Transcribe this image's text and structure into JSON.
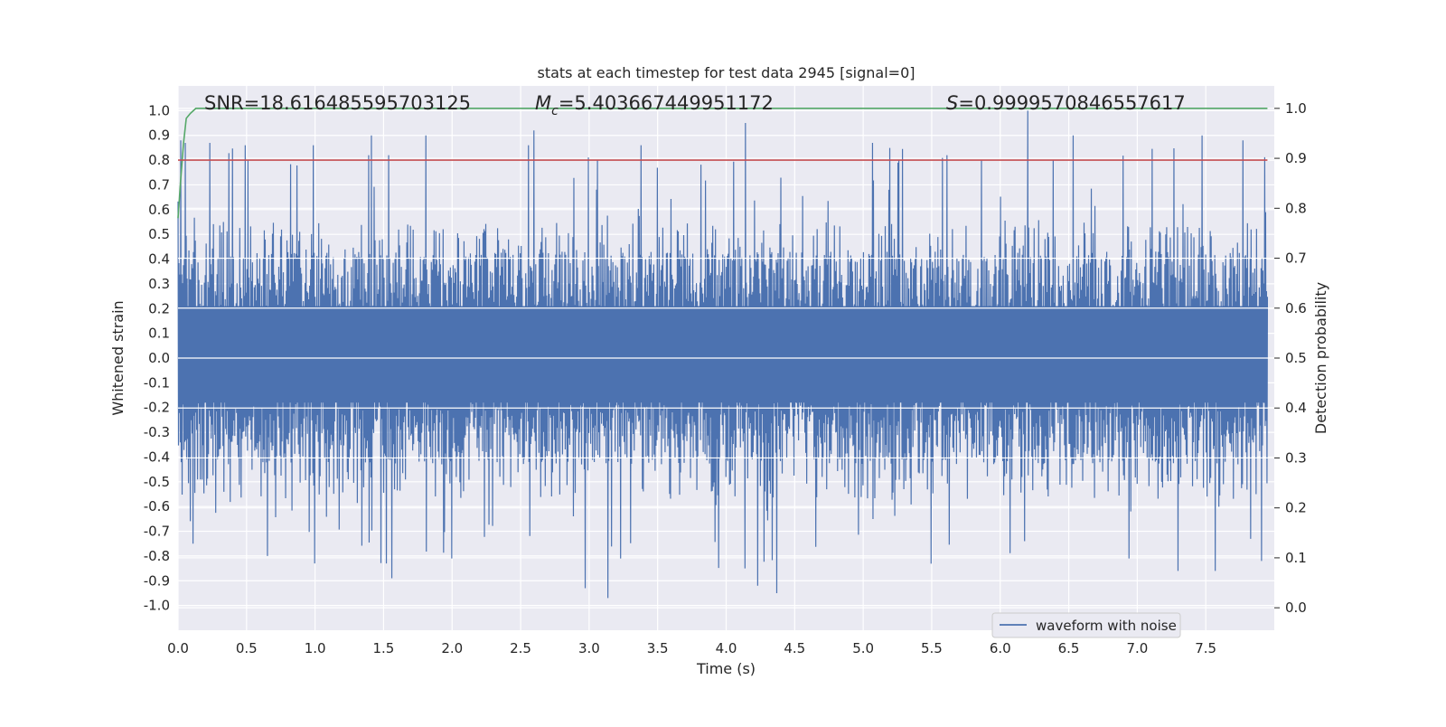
{
  "chart_data": {
    "type": "line",
    "title": "stats at each timestep for test data 2945 [signal=0]",
    "xlabel": "Time (s)",
    "ylabel": "Whitened strain",
    "y2label": "Detection probability",
    "xlim": [
      0.0,
      8.0
    ],
    "ylim": [
      -1.1,
      1.1
    ],
    "y2lim": [
      -0.045,
      1.045
    ],
    "xticks": [
      "0.0",
      "0.5",
      "1.0",
      "1.5",
      "2.0",
      "2.5",
      "3.0",
      "3.5",
      "4.0",
      "4.5",
      "5.0",
      "5.5",
      "6.0",
      "6.5",
      "7.0",
      "7.5"
    ],
    "xtick_values": [
      0.0,
      0.5,
      1.0,
      1.5,
      2.0,
      2.5,
      3.0,
      3.5,
      4.0,
      4.5,
      5.0,
      5.5,
      6.0,
      6.5,
      7.0,
      7.5
    ],
    "yticks": [
      "1.0",
      "0.9",
      "0.8",
      "0.7",
      "0.6",
      "0.5",
      "0.4",
      "0.3",
      "0.2",
      "0.1",
      "0.0",
      "-0.1",
      "-0.2",
      "-0.3",
      "-0.4",
      "-0.5",
      "-0.6",
      "-0.7",
      "-0.8",
      "-0.9",
      "-1.0"
    ],
    "ytick_values": [
      1.0,
      0.9,
      0.8,
      0.7,
      0.6,
      0.5,
      0.4,
      0.3,
      0.2,
      0.1,
      0.0,
      -0.1,
      -0.2,
      -0.3,
      -0.4,
      -0.5,
      -0.6,
      -0.7,
      -0.8,
      -0.9,
      -1.0
    ],
    "y2ticks": [
      "1.0",
      "0.9",
      "0.8",
      "0.7",
      "0.6",
      "0.5",
      "0.4",
      "0.3",
      "0.2",
      "0.1",
      "0.0"
    ],
    "y2tick_values": [
      1.0,
      0.9,
      0.8,
      0.7,
      0.6,
      0.5,
      0.4,
      0.3,
      0.2,
      0.1,
      0.0
    ],
    "annotations": {
      "snr": "SNR=18.616485595703125",
      "mc_symbol": "M",
      "mc_sub": "c",
      "mc_value": "=5.403667449951172",
      "s_symbol": "S",
      "s_value": "=0.9999570846557617"
    },
    "legend": {
      "label": "waveform with noise",
      "position": "lower-right"
    },
    "grid": true,
    "series": [
      {
        "name": "waveform with noise",
        "color": "#4c72b0",
        "axis": "left",
        "kind": "noise",
        "envelope_upper": 0.4,
        "envelope_lower": -0.45,
        "spike_max": 1.0,
        "spike_min": -0.96,
        "peaks": [
          [
            0.02,
            0.88
          ],
          [
            0.05,
            0.87
          ],
          [
            0.23,
            0.87
          ],
          [
            0.49,
            0.86
          ],
          [
            0.99,
            0.86
          ],
          [
            1.39,
            0.82
          ],
          [
            1.41,
            0.9
          ],
          [
            1.54,
            0.82
          ],
          [
            1.81,
            0.9
          ],
          [
            2.56,
            0.86
          ],
          [
            2.6,
            0.92
          ],
          [
            3.06,
            0.8
          ],
          [
            3.38,
            0.86
          ],
          [
            4.14,
            0.95
          ],
          [
            5.07,
            0.87
          ],
          [
            5.26,
            0.8
          ],
          [
            5.61,
            0.82
          ],
          [
            6.2,
            1.0
          ],
          [
            6.53,
            0.9
          ],
          [
            7.47,
            0.9
          ],
          [
            7.77,
            0.88
          ],
          [
            0.11,
            -0.75
          ],
          [
            0.65,
            -0.8
          ],
          [
            1.0,
            -0.83
          ],
          [
            1.52,
            -0.83
          ],
          [
            1.56,
            -0.89
          ],
          [
            2.0,
            -0.81
          ],
          [
            2.97,
            -0.93
          ],
          [
            3.14,
            -0.97
          ],
          [
            3.23,
            -0.81
          ],
          [
            4.14,
            -0.85
          ],
          [
            4.23,
            -0.92
          ],
          [
            4.37,
            -0.95
          ],
          [
            6.18,
            -0.74
          ],
          [
            6.94,
            -0.81
          ],
          [
            7.3,
            -0.86
          ],
          [
            7.57,
            -0.86
          ],
          [
            7.91,
            -0.82
          ]
        ]
      },
      {
        "name": "",
        "color": "#55a868",
        "axis": "right",
        "x": [
          0.0,
          0.02,
          0.04,
          0.06,
          0.09,
          0.13,
          7.95
        ],
        "values": [
          0.78,
          0.86,
          0.93,
          0.98,
          0.99,
          1.0,
          1.0
        ]
      },
      {
        "name": "",
        "color": "#c44e52",
        "axis": "left",
        "x": [
          0.0,
          7.95
        ],
        "values": [
          0.8,
          0.8
        ]
      }
    ]
  }
}
